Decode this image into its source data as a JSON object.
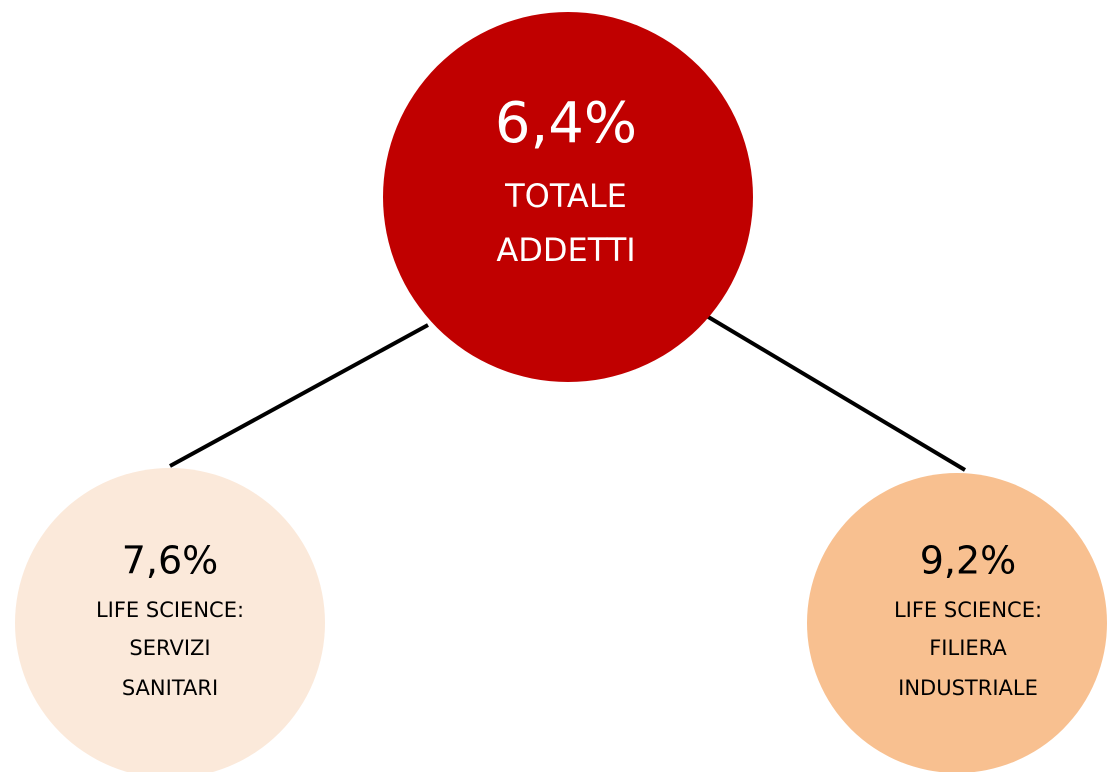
{
  "nodes": [
    {
      "value": "6,4%",
      "label": [
        "TOTALE",
        "ADDETTI"
      ]
    },
    {
      "value": "7,6%",
      "label": [
        "LIFE SCIENCE:",
        "SERVIZI",
        "SANITARI"
      ]
    },
    {
      "value": "9,2%",
      "label": [
        "LIFE SCIENCE:",
        "FILIERA",
        "INDUSTRIALE"
      ]
    }
  ]
}
